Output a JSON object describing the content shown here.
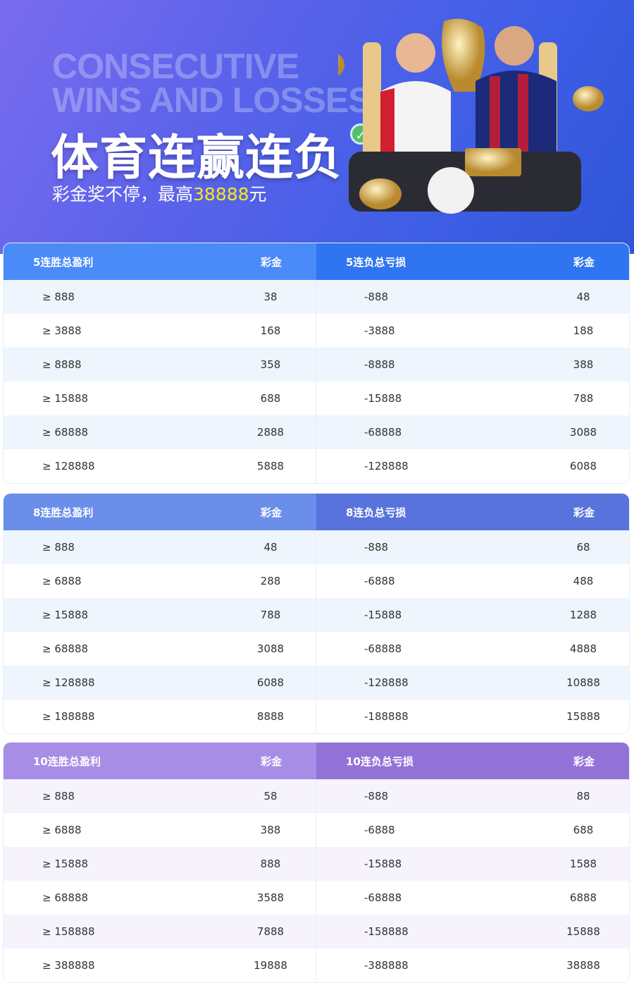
{
  "banner": {
    "en_line1": "CONSECUTIVE",
    "en_line2": "WINS AND LOSSES",
    "title": "体育连赢连负",
    "subtitle_prefix": "彩金奖不停，最高",
    "subtitle_amount": "38888",
    "subtitle_suffix": "元",
    "highlight_color": "#ffe81a"
  },
  "tables": [
    {
      "win_header": "5连胜总盈利",
      "win_prize_header": "彩金",
      "loss_header": "5连负总亏损",
      "loss_prize_header": "彩金",
      "colors": {
        "win_head": "#4a8bf8",
        "loss_head": "#2f74f0",
        "stripe": "#eef5fc"
      },
      "rows": [
        {
          "win": "≥ 888",
          "win_prize": "38",
          "loss": "-888",
          "loss_prize": "48"
        },
        {
          "win": "≥ 3888",
          "win_prize": "168",
          "loss": "-3888",
          "loss_prize": "188"
        },
        {
          "win": "≥ 8888",
          "win_prize": "358",
          "loss": "-8888",
          "loss_prize": "388"
        },
        {
          "win": "≥ 15888",
          "win_prize": "688",
          "loss": "-15888",
          "loss_prize": "788"
        },
        {
          "win": "≥ 68888",
          "win_prize": "2888",
          "loss": "-68888",
          "loss_prize": "3088"
        },
        {
          "win": "≥ 128888",
          "win_prize": "5888",
          "loss": "-128888",
          "loss_prize": "6088"
        }
      ]
    },
    {
      "win_header": "8连胜总盈利",
      "win_prize_header": "彩金",
      "loss_header": "8连负总亏损",
      "loss_prize_header": "彩金",
      "colors": {
        "win_head": "#6a8eea",
        "loss_head": "#5873dc",
        "stripe": "#eef5fc"
      },
      "rows": [
        {
          "win": "≥ 888",
          "win_prize": "48",
          "loss": "-888",
          "loss_prize": "68"
        },
        {
          "win": "≥ 6888",
          "win_prize": "288",
          "loss": "-6888",
          "loss_prize": "488"
        },
        {
          "win": "≥ 15888",
          "win_prize": "788",
          "loss": "-15888",
          "loss_prize": "1288"
        },
        {
          "win": "≥ 68888",
          "win_prize": "3088",
          "loss": "-68888",
          "loss_prize": "4888"
        },
        {
          "win": "≥ 128888",
          "win_prize": "6088",
          "loss": "-128888",
          "loss_prize": "10888"
        },
        {
          "win": "≥ 188888",
          "win_prize": "8888",
          "loss": "-188888",
          "loss_prize": "15888"
        }
      ]
    },
    {
      "win_header": "10连胜总盈利",
      "win_prize_header": "彩金",
      "loss_header": "10连负总亏损",
      "loss_prize_header": "彩金",
      "colors": {
        "win_head": "#a88de6",
        "loss_head": "#9372d8",
        "stripe": "#f6f3fc"
      },
      "rows": [
        {
          "win": "≥ 888",
          "win_prize": "58",
          "loss": "-888",
          "loss_prize": "88"
        },
        {
          "win": "≥ 6888",
          "win_prize": "388",
          "loss": "-6888",
          "loss_prize": "688"
        },
        {
          "win": "≥ 15888",
          "win_prize": "888",
          "loss": "-15888",
          "loss_prize": "1588"
        },
        {
          "win": "≥ 68888",
          "win_prize": "3588",
          "loss": "-68888",
          "loss_prize": "6888"
        },
        {
          "win": "≥ 158888",
          "win_prize": "7888",
          "loss": "-158888",
          "loss_prize": "15888"
        },
        {
          "win": "≥ 388888",
          "win_prize": "19888",
          "loss": "-388888",
          "loss_prize": "38888"
        }
      ]
    }
  ]
}
